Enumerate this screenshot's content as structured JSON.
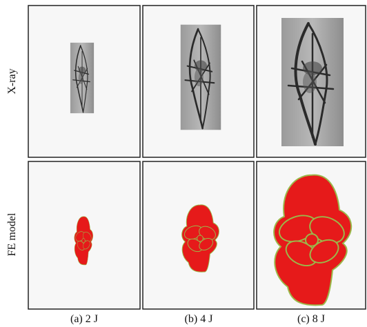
{
  "rows": [
    "X-ray",
    "FE model"
  ],
  "columns": [
    "(a) 2 J",
    "(b) 4 J",
    "(c) 8 J"
  ]
}
